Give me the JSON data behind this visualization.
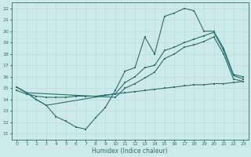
{
  "bg_color": "#cdeaea",
  "grid_color": "#b8d8d8",
  "line_color": "#2d6e6e",
  "xlabel": "Humidex (Indice chaleur)",
  "xlim": [
    -0.5,
    23.5
  ],
  "ylim": [
    10.5,
    22.5
  ],
  "yticks": [
    11,
    12,
    13,
    14,
    15,
    16,
    17,
    18,
    19,
    20,
    21,
    22
  ],
  "xticks": [
    0,
    1,
    2,
    3,
    4,
    5,
    6,
    7,
    8,
    9,
    10,
    11,
    12,
    13,
    14,
    15,
    16,
    17,
    18,
    19,
    20,
    21,
    22,
    23
  ],
  "line1_x": [
    0,
    1,
    2,
    3,
    4,
    5,
    6,
    7,
    8,
    9,
    10,
    11,
    12,
    13,
    14,
    15,
    16,
    17,
    18,
    19,
    20,
    21,
    22,
    23
  ],
  "line1_y": [
    15.1,
    14.6,
    14.0,
    13.5,
    12.5,
    12.1,
    11.6,
    11.4,
    12.4,
    13.3,
    14.8,
    16.5,
    16.8,
    19.5,
    18.0,
    21.3,
    21.6,
    22.0,
    21.8,
    20.0,
    20.0,
    18.5,
    16.2,
    16.0
  ],
  "line2_x": [
    0,
    1,
    2,
    3,
    10,
    11,
    12,
    13,
    14,
    15,
    16,
    17,
    18,
    19,
    20,
    21,
    22,
    23
  ],
  "line2_y": [
    15.1,
    14.6,
    14.0,
    13.5,
    14.5,
    15.5,
    16.0,
    16.8,
    17.0,
    18.3,
    18.6,
    19.0,
    19.3,
    19.6,
    19.9,
    18.3,
    16.1,
    15.8
  ],
  "line3_x": [
    0,
    1,
    10,
    11,
    12,
    13,
    14,
    15,
    16,
    17,
    18,
    19,
    20,
    21,
    22,
    23
  ],
  "line3_y": [
    15.1,
    14.6,
    14.2,
    15.0,
    15.4,
    15.9,
    16.4,
    17.6,
    18.0,
    18.6,
    18.8,
    19.1,
    19.5,
    18.0,
    15.8,
    15.6
  ],
  "line4_x": [
    0,
    1,
    2,
    3,
    4,
    5,
    6,
    7,
    8,
    9,
    10,
    11,
    12,
    13,
    14,
    15,
    16,
    17,
    18,
    19,
    20,
    21,
    22,
    23
  ],
  "line4_y": [
    14.8,
    14.5,
    14.3,
    14.2,
    14.2,
    14.2,
    14.3,
    14.3,
    14.3,
    14.4,
    14.5,
    14.6,
    14.7,
    14.8,
    14.9,
    15.0,
    15.1,
    15.2,
    15.3,
    15.3,
    15.4,
    15.4,
    15.5,
    15.6
  ]
}
